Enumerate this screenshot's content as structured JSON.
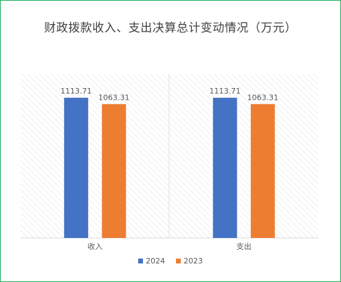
{
  "chart_data": {
    "type": "bar",
    "title": "财政拨款收入、支出决算总计变动情况（万元）",
    "categories": [
      "收入",
      "支出"
    ],
    "series": [
      {
        "name": "2024",
        "values": [
          1113.71,
          1113.71
        ],
        "labels": [
          "1113.71",
          "1113.71"
        ],
        "color": "#4472c4"
      },
      {
        "name": "2023",
        "values": [
          1063.31,
          1063.31
        ],
        "labels": [
          "1063.31",
          "1063.31"
        ],
        "color": "#ed7d31"
      }
    ],
    "ylim": [
      0,
      1300
    ],
    "grid": false,
    "legend_position": "bottom"
  }
}
